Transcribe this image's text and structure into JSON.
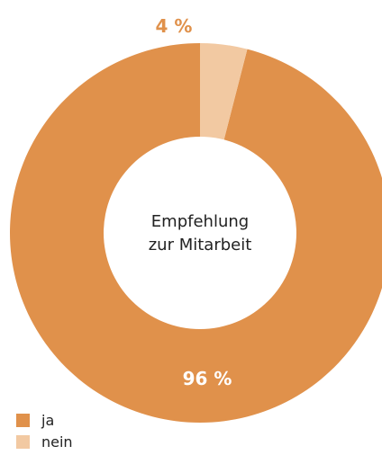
{
  "chart_data": {
    "type": "pie",
    "title": "Empfehlung zur Mitarbeit",
    "title_lines": [
      "Empfehlung",
      "zur Mitarbeit"
    ],
    "categories": [
      "ja",
      "nein"
    ],
    "values": [
      96,
      4
    ],
    "data_labels": [
      "96 %",
      "4 %"
    ],
    "colors": [
      "#e0914b",
      "#f2c9a2"
    ],
    "label_colors": [
      "#ffffff",
      "#e0914b"
    ],
    "donut": true,
    "legend_position": "bottom-left"
  },
  "legend": [
    {
      "label": "ja",
      "color": "#e0914b"
    },
    {
      "label": "nein",
      "color": "#f2c9a2"
    }
  ]
}
